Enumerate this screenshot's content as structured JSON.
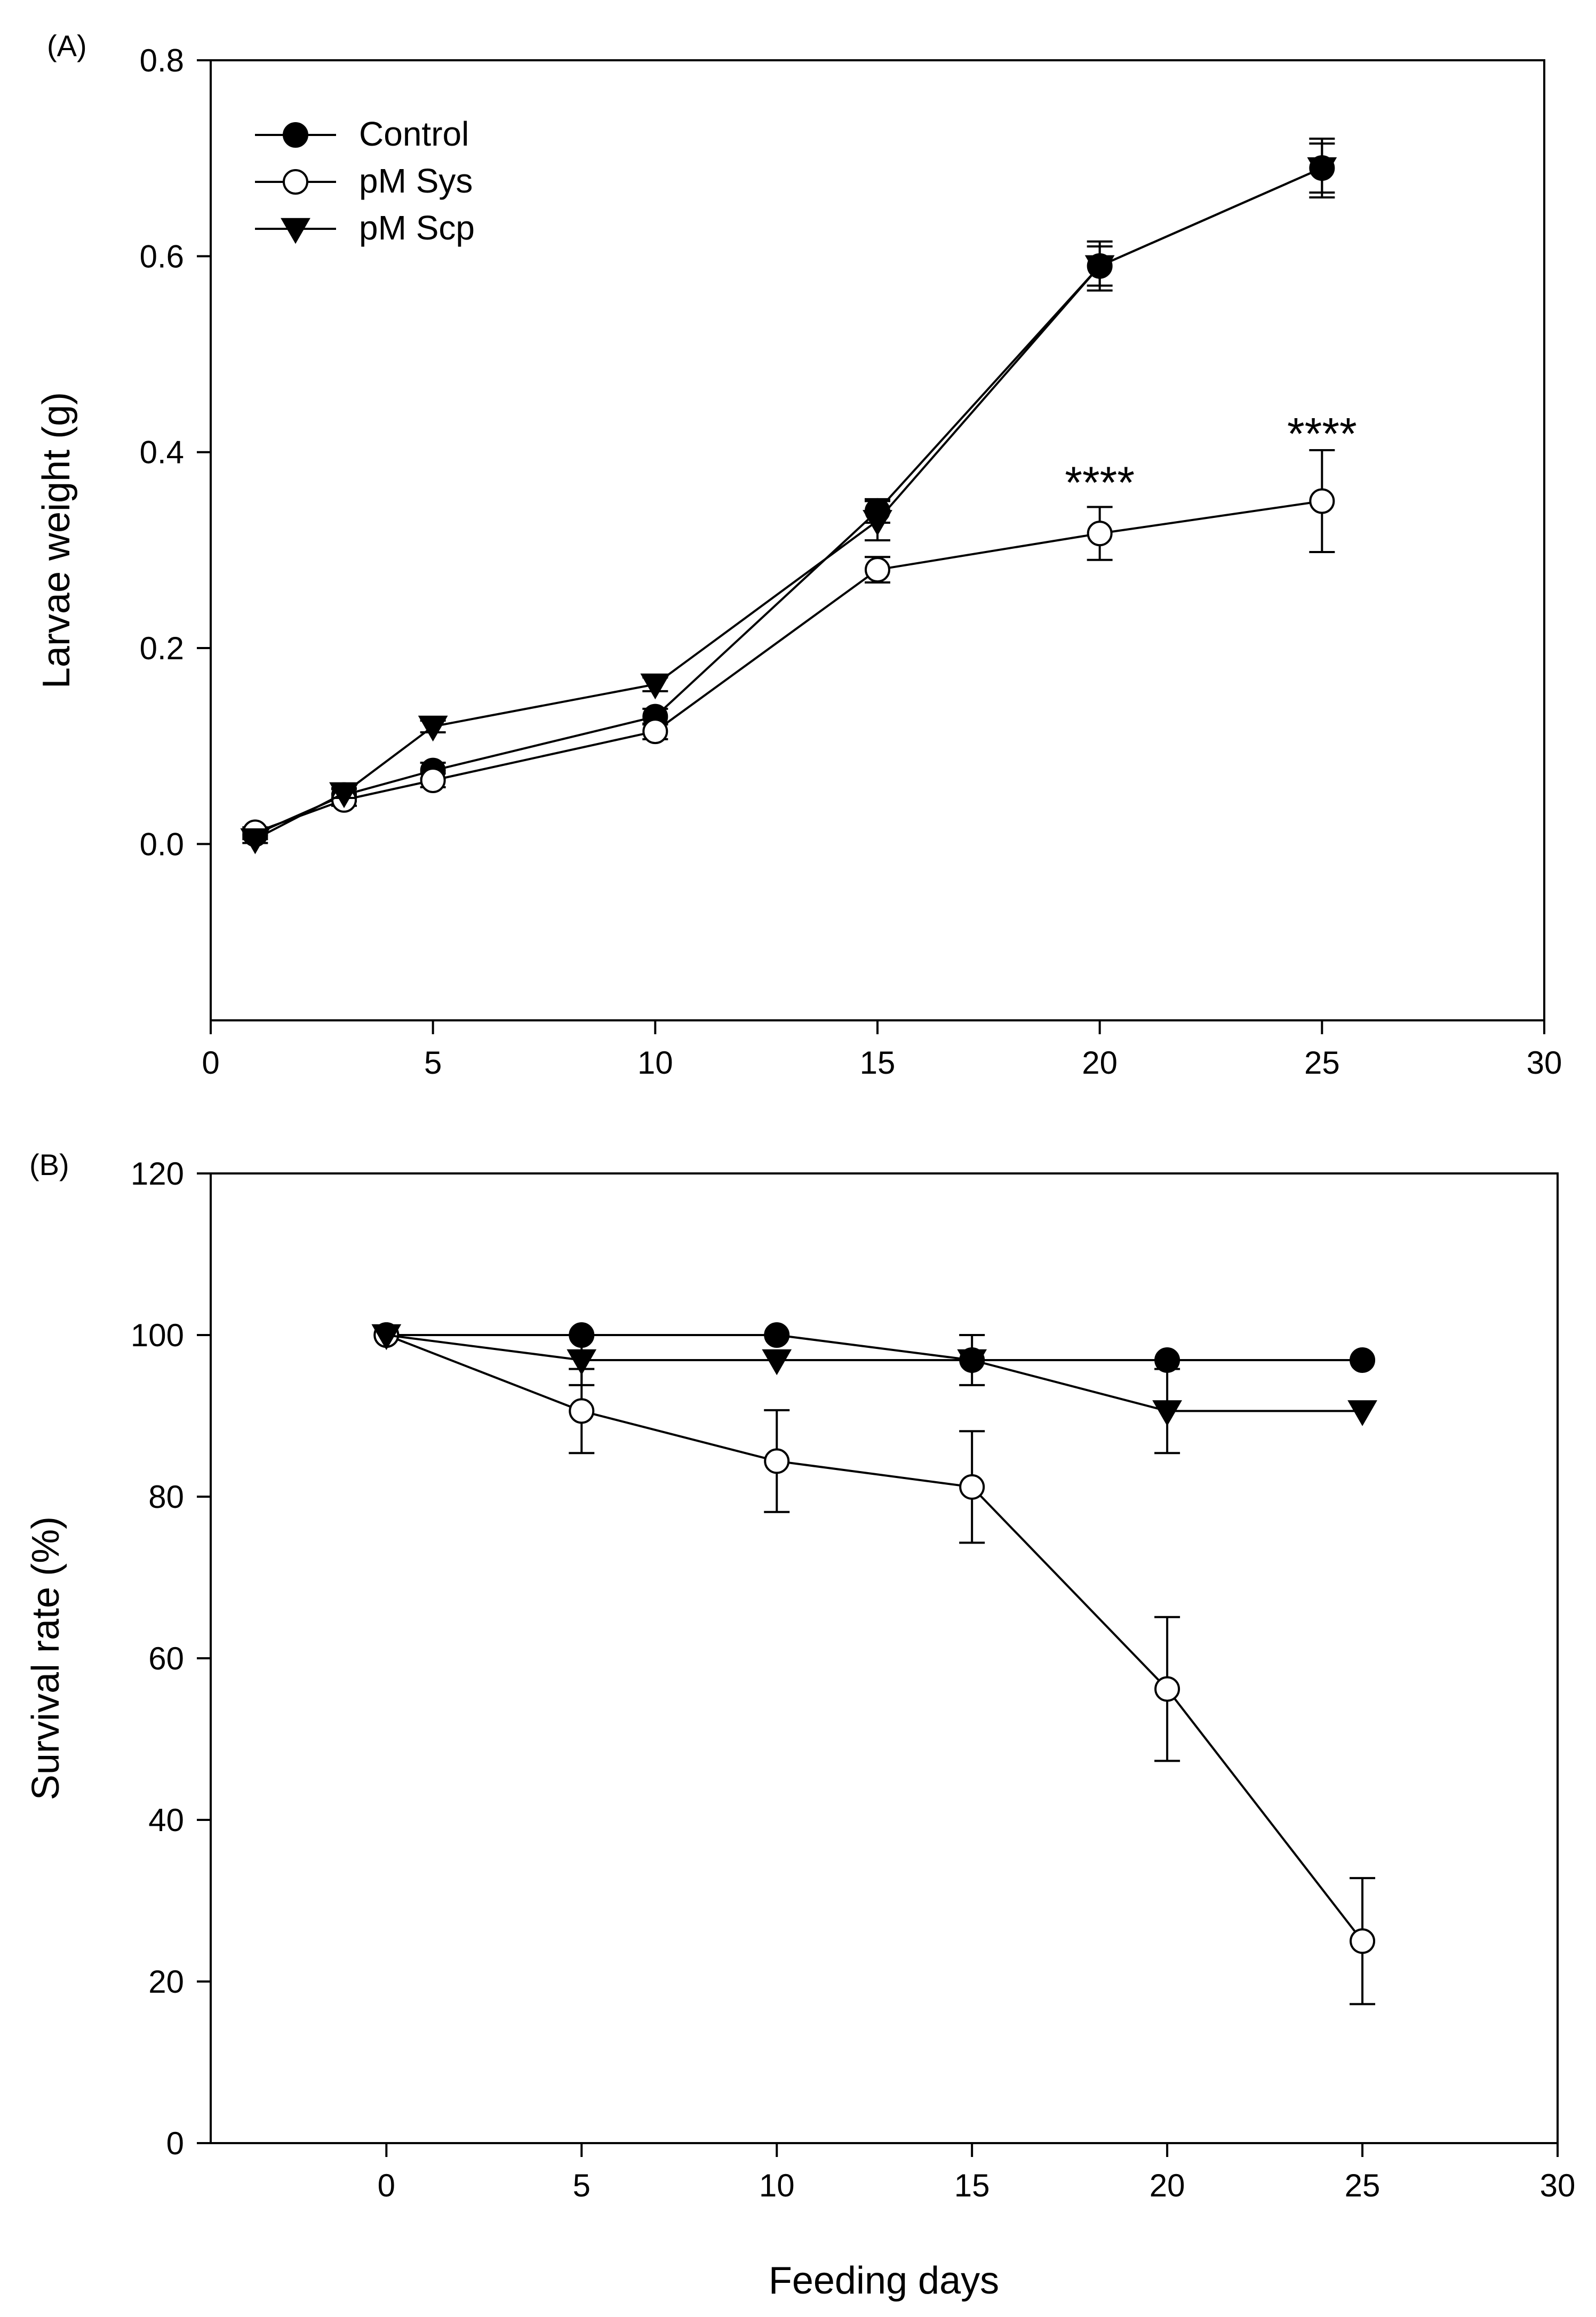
{
  "chart_data": [
    {
      "panel_label": "(A)",
      "type": "line",
      "title": "",
      "xlabel": "",
      "ylabel": "Larvae weight (g)",
      "xlim": [
        0,
        30
      ],
      "ylim": [
        -0.18,
        0.8
      ],
      "x_ticks": [
        0,
        5,
        10,
        15,
        20,
        25,
        30
      ],
      "x_tick_labels": [
        "0",
        "5",
        "10",
        "15",
        "20",
        "25",
        "30"
      ],
      "y_ticks": [
        0.0,
        0.2,
        0.4,
        0.6,
        0.8
      ],
      "y_tick_labels": [
        "0.0",
        "0.2",
        "0.4",
        "0.6",
        "0.8"
      ],
      "grid": false,
      "legend_position": "top-left",
      "series": [
        {
          "name": "Control",
          "marker": "filled-circle",
          "x": [
            1,
            3,
            5,
            10,
            15,
            20,
            25
          ],
          "values": [
            0.01,
            0.05,
            0.075,
            0.13,
            0.34,
            0.59,
            0.69
          ],
          "errors": [
            0.005,
            0.006,
            0.008,
            0.008,
            0.012,
            0.025,
            0.03
          ]
        },
        {
          "name": "pM Sys",
          "marker": "open-circle",
          "x": [
            1,
            3,
            5,
            10,
            15,
            20,
            25
          ],
          "values": [
            0.012,
            0.045,
            0.065,
            0.115,
            0.28,
            0.317,
            0.35
          ],
          "errors": [
            0.005,
            0.006,
            0.007,
            0.008,
            0.013,
            0.027,
            0.052
          ]
        },
        {
          "name": "pM Scp",
          "marker": "filled-triangle-down",
          "x": [
            1,
            3,
            5,
            10,
            15,
            20,
            25
          ],
          "values": [
            0.005,
            0.052,
            0.12,
            0.163,
            0.33,
            0.59,
            0.69
          ],
          "errors": [
            0.004,
            0.005,
            0.006,
            0.007,
            0.02,
            0.02,
            0.025
          ]
        }
      ],
      "annotations": [
        {
          "text": "****",
          "x": 20,
          "y": 0.375
        },
        {
          "text": "****",
          "x": 25,
          "y": 0.425
        }
      ]
    },
    {
      "panel_label": "(B)",
      "type": "line",
      "title": "",
      "xlabel": "Feeding days",
      "ylabel": "Survival rate (%)",
      "xlim": [
        -4.5,
        30
      ],
      "ylim": [
        0,
        120
      ],
      "x_ticks": [
        0,
        5,
        10,
        15,
        20,
        25,
        30
      ],
      "x_tick_labels": [
        "0",
        "5",
        "10",
        "15",
        "20",
        "25",
        "30"
      ],
      "y_ticks": [
        0,
        20,
        40,
        60,
        80,
        100,
        120
      ],
      "y_tick_labels": [
        "0",
        "20",
        "40",
        "60",
        "80",
        "100",
        "120"
      ],
      "grid": false,
      "series": [
        {
          "name": "Control",
          "marker": "filled-circle",
          "x": [
            0,
            5,
            10,
            15,
            20,
            25
          ],
          "values": [
            100,
            100,
            100,
            96.9,
            96.9,
            96.9
          ],
          "errors": [
            0,
            0,
            0,
            3.1,
            0,
            0
          ]
        },
        {
          "name": "pM Sys",
          "marker": "open-circle",
          "x": [
            0,
            5,
            10,
            15,
            20,
            25
          ],
          "values": [
            100,
            90.6,
            84.4,
            81.2,
            56.2,
            25
          ],
          "errors": [
            0,
            5.2,
            6.3,
            6.9,
            8.9,
            7.8
          ]
        },
        {
          "name": "pM Scp",
          "marker": "filled-triangle-down",
          "x": [
            0,
            5,
            10,
            15,
            20,
            25
          ],
          "values": [
            100,
            96.9,
            96.9,
            96.9,
            90.6,
            90.6
          ],
          "errors": [
            0,
            3.1,
            0,
            0,
            5.2,
            0
          ]
        }
      ]
    }
  ]
}
